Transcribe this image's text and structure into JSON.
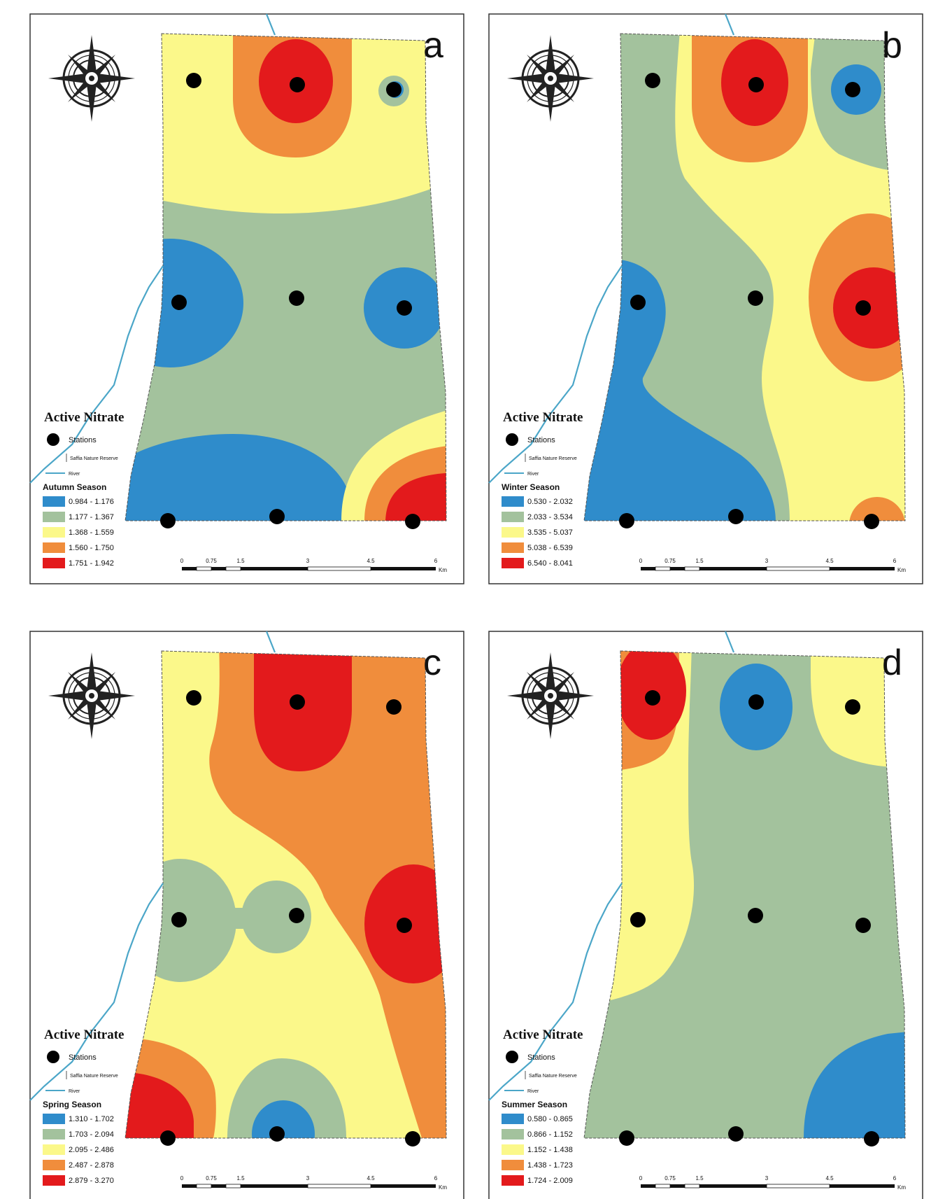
{
  "colors": {
    "blue": "#2f8ccb",
    "green": "#a3c29d",
    "yellow": "#fbf88a",
    "orange": "#f08d3c",
    "red": "#e31a1c",
    "river": "#4ba6c8",
    "frame": "#333333"
  },
  "legend_common": {
    "title": "Active Nitrate",
    "stations_label": "Stations",
    "reserve_label": "Saffia Nature Reserve",
    "river_label": "River"
  },
  "scale_bar": {
    "ticks": [
      "0",
      "0.75",
      "1.5",
      "3",
      "4.5",
      "6"
    ],
    "unit": "Km"
  },
  "panels": [
    {
      "letter": "a",
      "season": "Autumn Season",
      "classes": [
        "0.984 - 1.176",
        "1.177 - 1.367",
        "1.368 - 1.559",
        "1.560 - 1.750",
        "1.751 - 1.942"
      ]
    },
    {
      "letter": "b",
      "season": "Winter Season",
      "classes": [
        "0.530 - 2.032",
        "2.033 - 3.534",
        "3.535 - 5.037",
        "5.038 - 6.539",
        "6.540 - 8.041"
      ]
    },
    {
      "letter": "c",
      "season": "Spring Season",
      "classes": [
        "1.310 - 1.702",
        "1.703 - 2.094",
        "2.095 - 2.486",
        "2.487 - 2.878",
        "2.879 - 3.270"
      ]
    },
    {
      "letter": "d",
      "season": "Summer Season",
      "classes": [
        "0.580 - 0.865",
        "0.866 - 1.152",
        "1.152 - 1.438",
        "1.438 - 1.723",
        "1.724 - 2.009"
      ]
    }
  ]
}
